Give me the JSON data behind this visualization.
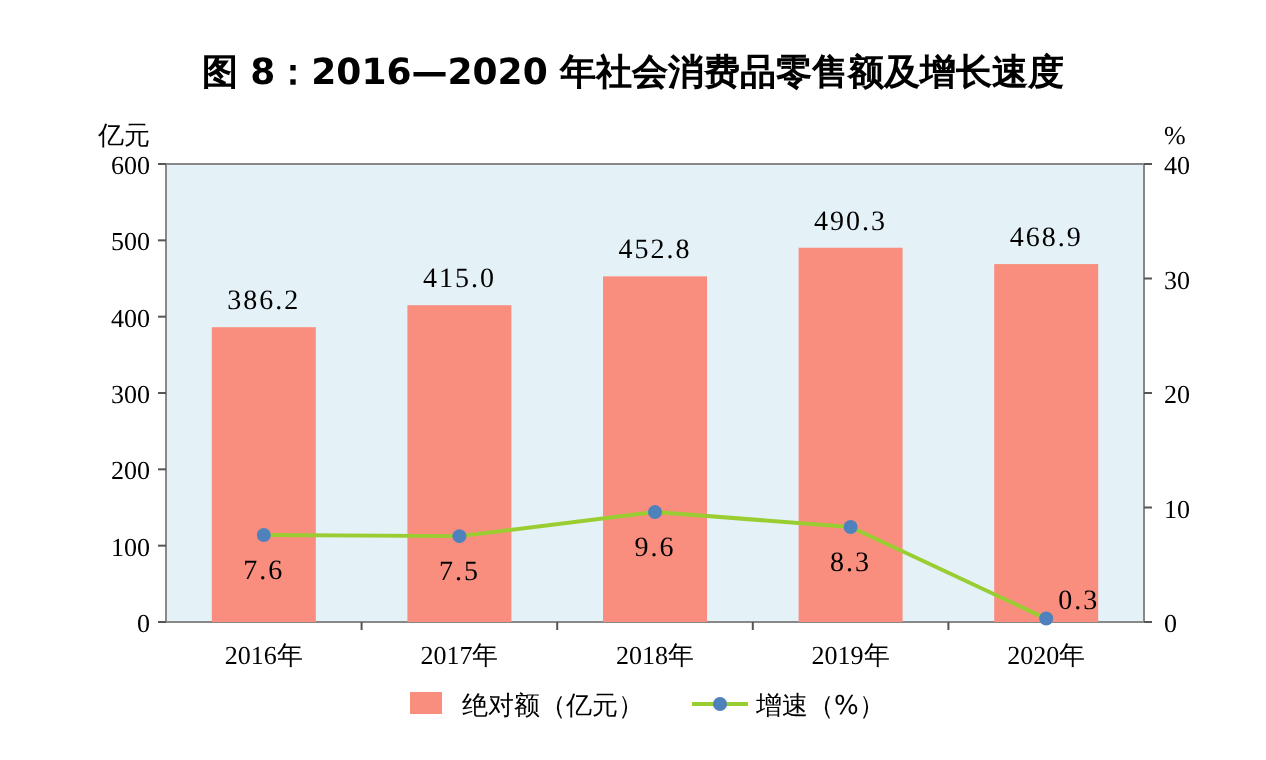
{
  "chart_data": {
    "type": "bar",
    "title": "图 8：2016—2020 年社会消费品零售额及增长速度",
    "ylabel": "亿元",
    "y2label": "%",
    "categories": [
      "2016年",
      "2017年",
      "2018年",
      "2019年",
      "2020年"
    ],
    "series": [
      {
        "name": "绝对额（亿元）",
        "color": "#f98e7e",
        "values": [
          386.2,
          415.0,
          452.8,
          490.3,
          468.9
        ],
        "value_labels": [
          "386.2",
          "415.0",
          "452.8",
          "490.3",
          "468.9"
        ]
      },
      {
        "name": "增速（%）",
        "type": "line",
        "axis": "y2",
        "color": "#9acd32",
        "colors": [
          "#4f81bd",
          "#4f81bd",
          "#4f81bd",
          "#4f81bd",
          "#4f81bd"
        ],
        "values": [
          7.6,
          7.5,
          9.6,
          8.3,
          0.3
        ],
        "value_labels": [
          "7.6",
          "7.5",
          "9.6",
          "8.3",
          "0.3"
        ]
      }
    ],
    "ylim": [
      0,
      600
    ],
    "yticks": [
      0,
      100,
      200,
      300,
      400,
      500,
      600
    ],
    "y2lim": [
      0,
      40
    ],
    "y2ticks": [
      0,
      10,
      20,
      30,
      40
    ],
    "marker": "circle",
    "grid": false,
    "legend": "bottom"
  }
}
